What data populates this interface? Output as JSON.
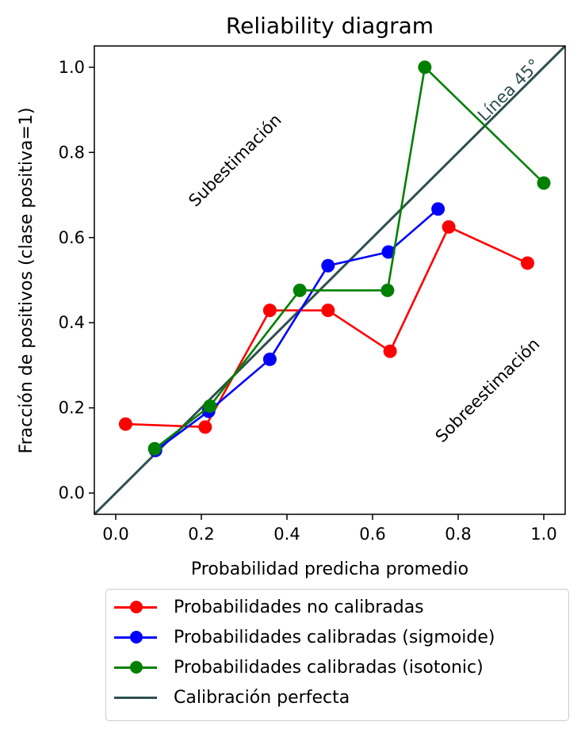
{
  "chart_data": {
    "type": "line",
    "title": "Reliability diagram",
    "xlabel": "Probabilidad predicha promedio",
    "ylabel": "Fracción de positivos (clase positiva=1)",
    "xlim": [
      -0.05,
      1.05
    ],
    "ylim": [
      -0.05,
      1.05
    ],
    "xticks": [
      0.0,
      0.2,
      0.4,
      0.6,
      0.8,
      1.0
    ],
    "xtick_labels": [
      "0.0",
      "0.2",
      "0.4",
      "0.6",
      "0.8",
      "1.0"
    ],
    "yticks": [
      0.0,
      0.2,
      0.4,
      0.6,
      0.8,
      1.0
    ],
    "ytick_labels": [
      "0.0",
      "0.2",
      "0.4",
      "0.6",
      "0.8",
      "1.0"
    ],
    "grid": false,
    "legend_position": "bottom-outside",
    "series": [
      {
        "name": "Probabilidades no calibradas",
        "color": "#ff0000",
        "marker": "circle",
        "x": [
          0.023,
          0.209,
          0.36,
          0.496,
          0.641,
          0.778,
          0.962
        ],
        "y": [
          0.162,
          0.155,
          0.429,
          0.429,
          0.333,
          0.625,
          0.54
        ]
      },
      {
        "name": "Probabilidades calibradas (sigmoide)",
        "color": "#0000ff",
        "marker": "circle",
        "x": [
          0.093,
          0.217,
          0.36,
          0.496,
          0.637,
          0.753
        ],
        "y": [
          0.1,
          0.192,
          0.314,
          0.534,
          0.566,
          0.667
        ]
      },
      {
        "name": "Probabilidades calibradas (isotonic)",
        "color": "#008000",
        "marker": "circle",
        "x": [
          0.091,
          0.22,
          0.43,
          0.635,
          0.722,
          1.0
        ],
        "y": [
          0.104,
          0.204,
          0.476,
          0.476,
          1.0,
          0.728
        ]
      },
      {
        "name": "Calibración perfecta",
        "color": "#2f4f4f",
        "marker": "none",
        "x": [
          -0.05,
          1.05
        ],
        "y": [
          -0.05,
          1.05
        ]
      }
    ],
    "annotations": [
      {
        "text": "Subestimación",
        "x": 0.28,
        "y": 0.78,
        "rotation": 45,
        "color": "#000000"
      },
      {
        "text": "Sobreestimación",
        "x": 0.87,
        "y": 0.24,
        "rotation": 45,
        "color": "#000000"
      },
      {
        "text": "Línea 45°",
        "x": 0.92,
        "y": 0.945,
        "rotation": 45,
        "color": "#2f4f4f"
      }
    ]
  }
}
